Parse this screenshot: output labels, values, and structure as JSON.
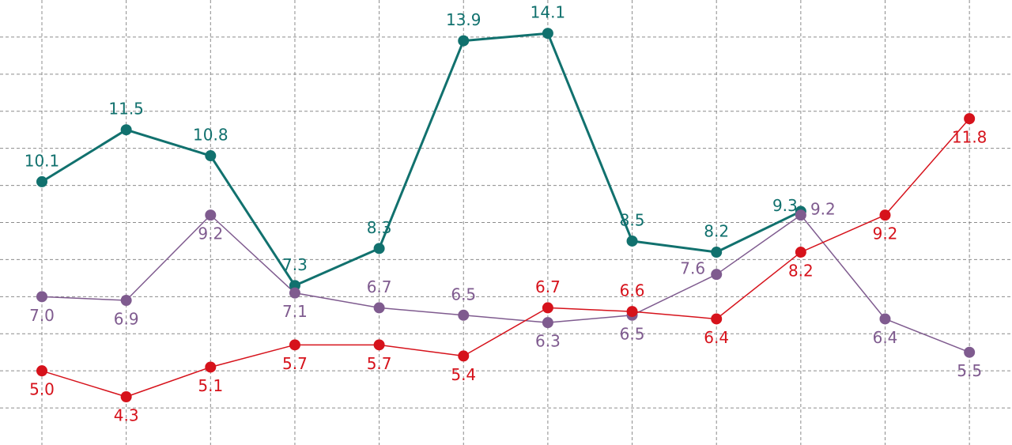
{
  "chart_data": {
    "type": "line",
    "categories": [
      null,
      null,
      null,
      null,
      null,
      null,
      null,
      null,
      null,
      null,
      null,
      null
    ],
    "series": [
      {
        "color": "#11716e",
        "values": [
          10.1,
          11.5,
          10.8,
          7.3,
          8.3,
          13.9,
          14.1,
          8.5,
          8.2,
          9.3,
          null,
          null
        ]
      },
      {
        "color": "#7f5b8f",
        "values": [
          7.0,
          6.9,
          9.2,
          7.1,
          6.7,
          6.5,
          6.3,
          6.5,
          7.6,
          9.2,
          6.4,
          5.5
        ]
      },
      {
        "color": "#d6121b",
        "values": [
          5.0,
          4.3,
          5.1,
          5.7,
          5.7,
          5.4,
          6.7,
          6.6,
          6.4,
          8.2,
          9.2,
          11.8
        ]
      }
    ],
    "ylim": [
      3,
      15
    ],
    "yticks": [
      4,
      5,
      6,
      7,
      8,
      9,
      10,
      11,
      12,
      13,
      14
    ],
    "grid": true
  }
}
